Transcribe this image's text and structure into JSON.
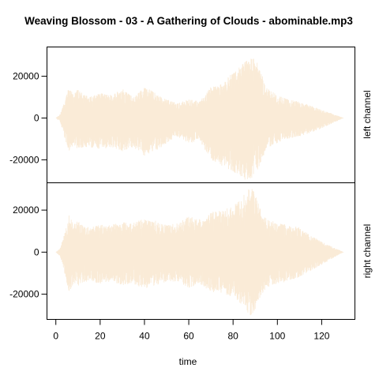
{
  "chart_data": {
    "type": "area",
    "title": "Weaving Blossom - 03 - A Gathering of Clouds - abominable.mp3",
    "xlabel": "time",
    "xlim": [
      -4,
      135
    ],
    "x_ticks": [
      0,
      20,
      40,
      60,
      80,
      100,
      120
    ],
    "x_tick_labels": [
      "0",
      "20",
      "40",
      "60",
      "80",
      "100",
      "120"
    ],
    "line_color": "#FAEBD7",
    "grid": false,
    "panels": [
      {
        "name": "left channel",
        "ylim": [
          -31000,
          34000
        ],
        "y_ticks": [
          20000,
          0,
          -20000
        ],
        "y_tick_labels": [
          "20000",
          "0",
          "-20000"
        ],
        "envelope": {
          "x": [
            0,
            2,
            4,
            6,
            8,
            10,
            12,
            15,
            20,
            25,
            30,
            35,
            40,
            45,
            50,
            55,
            60,
            65,
            70,
            75,
            80,
            83,
            86,
            88,
            90,
            92,
            95,
            100,
            105,
            110,
            115,
            120,
            125,
            128,
            130
          ],
          "upper": [
            0,
            2000,
            8000,
            15000,
            11000,
            14000,
            12000,
            10000,
            12000,
            11000,
            14000,
            10000,
            15000,
            12000,
            9000,
            7000,
            9000,
            8000,
            15000,
            17000,
            22000,
            25000,
            28000,
            30000,
            29000,
            24000,
            15000,
            11000,
            9000,
            8000,
            6000,
            4000,
            2000,
            800,
            0
          ],
          "lower": [
            0,
            -2000,
            -10000,
            -16000,
            -13000,
            -15000,
            -14000,
            -14000,
            -15000,
            -14000,
            -16000,
            -14000,
            -18000,
            -16000,
            -12000,
            -9000,
            -12000,
            -11000,
            -20000,
            -23000,
            -26000,
            -28000,
            -30000,
            -29000,
            -27000,
            -23000,
            -15000,
            -12000,
            -10000,
            -9000,
            -7000,
            -5000,
            -2500,
            -1000,
            0
          ]
        }
      },
      {
        "name": "right channel",
        "ylim": [
          -32000,
          33000
        ],
        "y_ticks": [
          20000,
          0,
          -20000
        ],
        "y_tick_labels": [
          "20000",
          "0",
          "-20000"
        ],
        "envelope": {
          "x": [
            0,
            2,
            4,
            6,
            8,
            10,
            12,
            15,
            20,
            25,
            30,
            35,
            40,
            45,
            50,
            55,
            60,
            65,
            70,
            75,
            80,
            83,
            86,
            88,
            90,
            92,
            95,
            100,
            105,
            110,
            115,
            120,
            125,
            128,
            130
          ],
          "upper": [
            0,
            2000,
            9000,
            18000,
            14000,
            15000,
            13000,
            12000,
            13000,
            13000,
            15000,
            14000,
            16000,
            15000,
            13000,
            14000,
            17000,
            16000,
            19000,
            20000,
            22000,
            25000,
            29000,
            31000,
            28000,
            22000,
            16000,
            14000,
            13000,
            12000,
            8000,
            5000,
            2500,
            1000,
            0
          ],
          "lower": [
            0,
            -2000,
            -10000,
            -20000,
            -15000,
            -16000,
            -15000,
            -14000,
            -15000,
            -14000,
            -16000,
            -15000,
            -18000,
            -16000,
            -14000,
            -14000,
            -17000,
            -15000,
            -19000,
            -20000,
            -22000,
            -24000,
            -28000,
            -31000,
            -27000,
            -22000,
            -17000,
            -15000,
            -14000,
            -12000,
            -9000,
            -6000,
            -3000,
            -1000,
            0
          ]
        }
      }
    ]
  }
}
